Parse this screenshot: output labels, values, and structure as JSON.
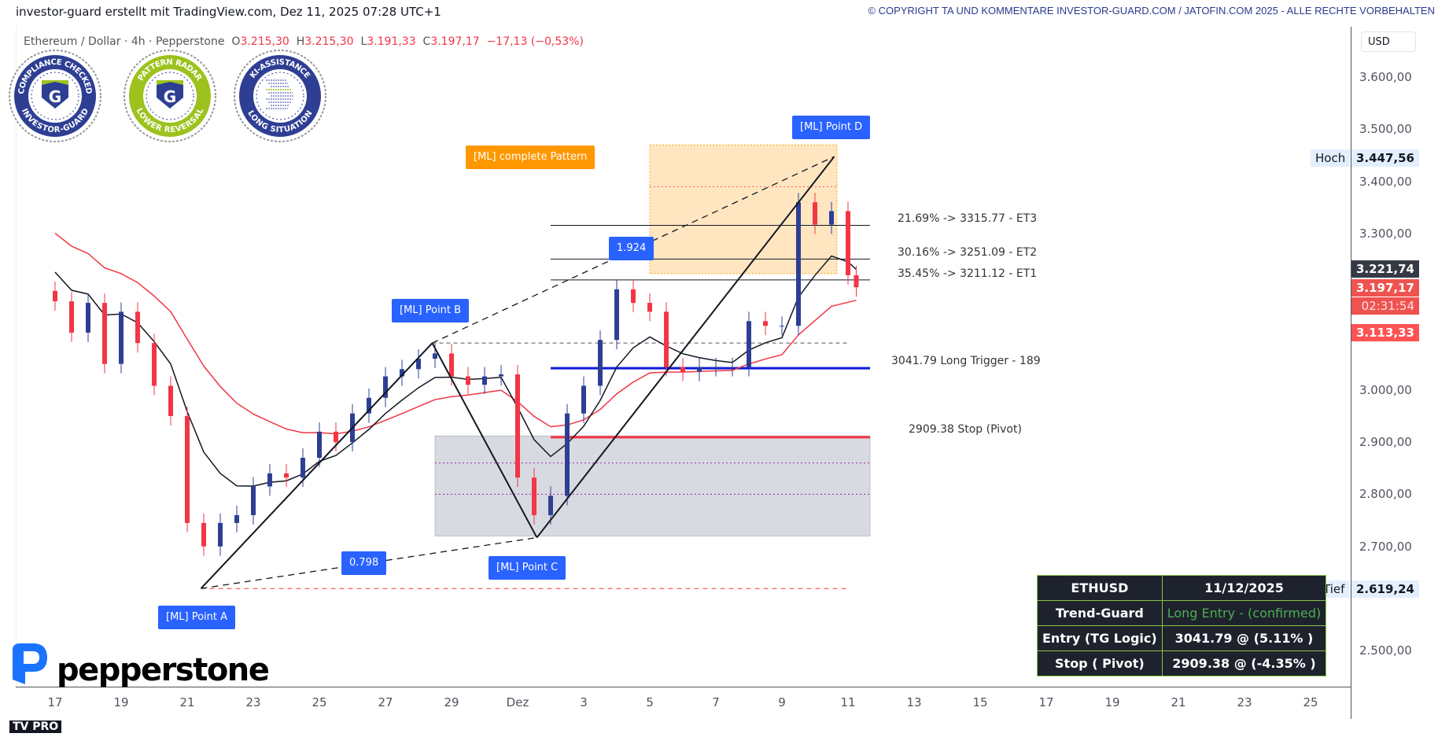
{
  "header": {
    "title": "investor-guard erstellt mit TradingView.com, Dez 11, 2025 07:28 UTC+1",
    "copyright": "© COPYRIGHT TA UND KOMMENTARE INVESTOR-GUARD.COM / JATOFIN.COM 2025 - ALLE RECHTE VORBEHALTEN"
  },
  "symbol": {
    "name": "Ethereum / Dollar · 4h · Pepperstone",
    "open_label": "O",
    "open": "3.215,30",
    "high_label": "H",
    "high": "3.215,30",
    "low_label": "L",
    "low": "3.191,33",
    "close_label": "C",
    "close": "3.197,17",
    "change": "−17,13 (−0,53%)"
  },
  "badges": [
    {
      "top": "COMPLIANCE CHECKED",
      "bottom": "INVESTOR-GUARD",
      "color": "#2e3f93"
    },
    {
      "top": "PATTERN RADAR",
      "bottom": "LOWER REVERSAL",
      "color": "#9dc21e"
    },
    {
      "top": "KI-ASSISTANCE",
      "bottom": "LONG SITUATION",
      "color": "#2e3f93"
    }
  ],
  "branding": {
    "broker": "pepperstone",
    "tv": "TV PRO"
  },
  "price_axis": {
    "currency": "USD",
    "ticks": [
      "3.600,00",
      "3.500,00",
      "3.400,00",
      "3.300,00",
      "3.000,00",
      "2.900,00",
      "2.800,00",
      "2.700,00",
      "2.500,00"
    ],
    "tick_values": [
      3600,
      3500,
      3400,
      3300,
      3000,
      2900,
      2800,
      2700,
      2500
    ],
    "tags": {
      "high_label": "Hoch",
      "high": "3.447,56",
      "ma_black": "3.221,74",
      "last": "3.197,17",
      "countdown": "02:31:54",
      "ma_red": "3.113,33",
      "low_label": "Tief",
      "low": "2.619,24"
    }
  },
  "time_axis": {
    "labels": [
      "17",
      "19",
      "21",
      "23",
      "25",
      "27",
      "29",
      "Dez",
      "3",
      "5",
      "7",
      "9",
      "11",
      "13",
      "15",
      "17",
      "19",
      "21",
      "23",
      "25"
    ],
    "label_dates": [
      "2025-11-17",
      "2025-11-19",
      "2025-11-21",
      "2025-11-23",
      "2025-11-25",
      "2025-11-27",
      "2025-11-29",
      "2025-12-01",
      "2025-12-03",
      "2025-12-05",
      "2025-12-07",
      "2025-12-09",
      "2025-12-11",
      "2025-12-13",
      "2025-12-15",
      "2025-12-17",
      "2025-12-19",
      "2025-12-21",
      "2025-12-23",
      "2025-12-25"
    ]
  },
  "chart_data": {
    "type": "candlestick",
    "symbol": "ETHUSD",
    "timeframe": "4h",
    "ylim": [
      2430,
      3700
    ],
    "grid": false,
    "closes": [
      [
        "2025-11-17T00:00",
        3170
      ],
      [
        "2025-11-17T12:00",
        3110
      ],
      [
        "2025-11-18T00:00",
        3167
      ],
      [
        "2025-11-18T12:00",
        3050
      ],
      [
        "2025-11-19T00:00",
        3150
      ],
      [
        "2025-11-19T12:00",
        3090
      ],
      [
        "2025-11-20T00:00",
        3008
      ],
      [
        "2025-11-20T12:00",
        2950
      ],
      [
        "2025-11-21T00:00",
        2745
      ],
      [
        "2025-11-21T12:00",
        2700
      ],
      [
        "2025-11-22T00:00",
        2745
      ],
      [
        "2025-11-22T12:00",
        2760
      ],
      [
        "2025-11-23T00:00",
        2815
      ],
      [
        "2025-11-23T12:00",
        2840
      ],
      [
        "2025-11-24T00:00",
        2832
      ],
      [
        "2025-11-24T12:00",
        2870
      ],
      [
        "2025-11-25T00:00",
        2920
      ],
      [
        "2025-11-25T12:00",
        2900
      ],
      [
        "2025-11-26T00:00",
        2955
      ],
      [
        "2025-11-26T12:00",
        2985
      ],
      [
        "2025-11-27T00:00",
        3026
      ],
      [
        "2025-11-27T12:00",
        3040
      ],
      [
        "2025-11-28T00:00",
        3060
      ],
      [
        "2025-11-28T12:00",
        3070
      ],
      [
        "2025-11-29T00:00",
        3026
      ],
      [
        "2025-11-29T12:00",
        3010
      ],
      [
        "2025-11-30T00:00",
        3026
      ],
      [
        "2025-11-30T12:00",
        3030
      ],
      [
        "2025-12-01T00:00",
        2832
      ],
      [
        "2025-12-01T12:00",
        2760
      ],
      [
        "2025-12-02T00:00",
        2797
      ],
      [
        "2025-12-02T12:00",
        2955
      ],
      [
        "2025-12-03T00:00",
        3008
      ],
      [
        "2025-12-03T12:00",
        3096
      ],
      [
        "2025-12-04T00:00",
        3193
      ],
      [
        "2025-12-04T12:00",
        3167
      ],
      [
        "2025-12-05T00:00",
        3150
      ],
      [
        "2025-12-05T12:00",
        3044
      ],
      [
        "2025-12-06T00:00",
        3035
      ],
      [
        "2025-12-06T12:00",
        3044
      ],
      [
        "2025-12-07T00:00",
        3044
      ],
      [
        "2025-12-07T12:00",
        3044
      ],
      [
        "2025-12-08T00:00",
        3132
      ],
      [
        "2025-12-08T12:00",
        3123
      ],
      [
        "2025-12-09T00:00",
        3123
      ],
      [
        "2025-12-09T12:00",
        3360
      ],
      [
        "2025-12-10T00:00",
        3317
      ],
      [
        "2025-12-10T12:00",
        3343
      ],
      [
        "2025-12-11T00:00",
        3220
      ],
      [
        "2025-12-11T06:00",
        3197
      ]
    ],
    "pattern_points": [
      {
        "label": "[ML] Point A",
        "date": "2025-11-21T10:00",
        "price": 2619.24
      },
      {
        "label": "[ML] Point B",
        "date": "2025-11-28T10:00",
        "price": 3090
      },
      {
        "label": "[ML] Point C",
        "date": "2025-12-01T14:00",
        "price": 2717
      },
      {
        "label": "[ML] Point D",
        "date": "2025-12-10T14:00",
        "price": 3447.56
      }
    ],
    "ratios": [
      {
        "label": "0.798",
        "leg": "A-C"
      },
      {
        "label": "1.924",
        "leg": "B-D"
      }
    ],
    "pattern_label": "[ML] complete Pattern",
    "target_zone": {
      "from": "2025-12-05T00:00",
      "to": "2025-12-10T16:00",
      "top": 3470,
      "bottom": 3223,
      "color": "#ffe0b2"
    },
    "stop_zone": {
      "from": "2025-11-28T12:00",
      "to": "2025-12-11T16:00",
      "top": 2912,
      "bottom": 2720,
      "color": "#d1d4dc"
    },
    "levels": [
      {
        "label": "21.69% -> 3315.77 - ET3",
        "price": 3315.77,
        "color": "#131722",
        "style": "solid"
      },
      {
        "label": "30.16% -> 3251.09 - ET2",
        "price": 3251.09,
        "color": "#131722",
        "style": "solid"
      },
      {
        "label": "35.45% -> 3211.12 - ET1",
        "price": 3211.12,
        "color": "#131722",
        "style": "solid"
      },
      {
        "label": "3041.79  Long Trigger - 189",
        "price": 3041.79,
        "color": "#0d1bd6",
        "style": "thick"
      },
      {
        "label": "2909.38  Stop (Pivot)",
        "price": 2909.38,
        "color": "#f23645",
        "style": "thick"
      }
    ],
    "colors": {
      "up": "#2e3f93",
      "down": "#f23645",
      "ma_fast": "#131722",
      "ma_slow": "#f23645"
    }
  },
  "summary_table": {
    "rows": [
      [
        "ETHUSD",
        "11/12/2025"
      ],
      [
        "Trend-Guard",
        "Long Entry - (confirmed)"
      ],
      [
        "Entry (TG Logic)",
        "3041.79 @ (5.11% )"
      ],
      [
        "Stop ( Pivot)",
        "2909.38 @ (-4.35% )"
      ]
    ]
  }
}
